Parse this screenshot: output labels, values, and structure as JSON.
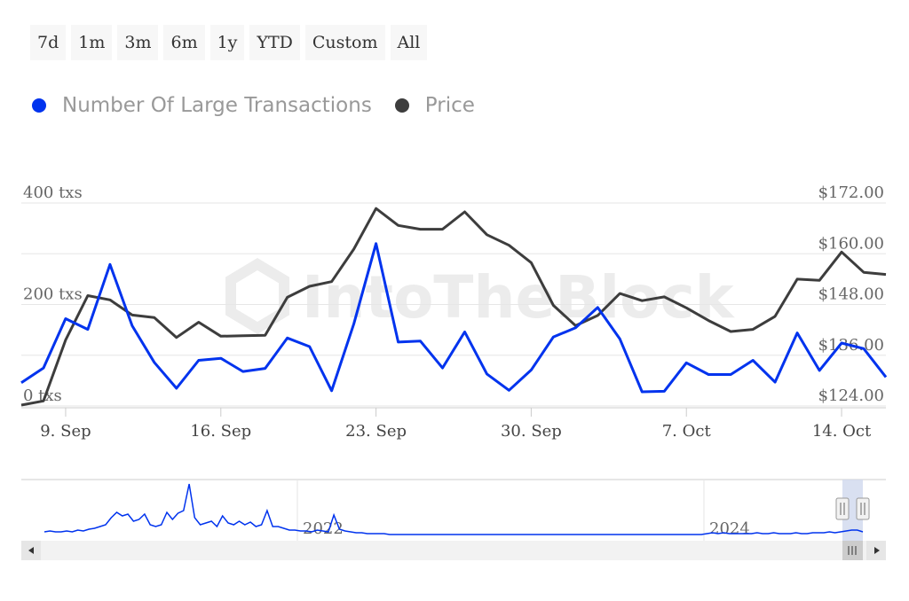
{
  "range_selector": {
    "buttons": [
      "7d",
      "1m",
      "3m",
      "6m",
      "1y",
      "YTD",
      "Custom",
      "All"
    ]
  },
  "watermark": "IntoTheBlock",
  "colors": {
    "transactions": "#0033ee",
    "price": "#3d3d3d",
    "grid": "#e6e6e6",
    "navigator_mask": "#cfd8ee"
  },
  "chart_data": {
    "type": "line",
    "x_ticks": [
      "9. Sep",
      "16. Sep",
      "23. Sep",
      "30. Sep",
      "7. Oct",
      "14. Oct"
    ],
    "y_left": {
      "ticks": [
        "0 txs",
        "200 txs",
        "400 txs"
      ],
      "range": [
        0,
        400
      ]
    },
    "y_right": {
      "ticks": [
        "$124.00",
        "$136.00",
        "$148.00",
        "$160.00",
        "$172.00"
      ],
      "range": [
        124,
        172
      ]
    },
    "series": [
      {
        "name": "Number Of Large Transactions",
        "axis": "left",
        "x": [
          "Sep 7",
          "Sep 8",
          "Sep 9",
          "Sep 10",
          "Sep 11",
          "Sep 12",
          "Sep 13",
          "Sep 14",
          "Sep 15",
          "Sep 16",
          "Sep 17",
          "Sep 18",
          "Sep 19",
          "Sep 20",
          "Sep 21",
          "Sep 22",
          "Sep 23",
          "Sep 24",
          "Sep 25",
          "Sep 26",
          "Sep 27",
          "Sep 28",
          "Sep 29",
          "Sep 30",
          "Oct 1",
          "Oct 2",
          "Oct 3",
          "Oct 4",
          "Oct 5",
          "Oct 6",
          "Oct 7",
          "Oct 8",
          "Oct 9",
          "Oct 10",
          "Oct 11",
          "Oct 12",
          "Oct 13",
          "Oct 14",
          "Oct 15",
          "Oct 16"
        ],
        "values": [
          46,
          75,
          172,
          151,
          279,
          158,
          86,
          35,
          90,
          94,
          68,
          74,
          134,
          117,
          30,
          162,
          320,
          126,
          128,
          75,
          146,
          63,
          31,
          71,
          136,
          154,
          194,
          132,
          28,
          29,
          85,
          62,
          62,
          90,
          47,
          144,
          70,
          124,
          113,
          57
        ]
      },
      {
        "name": "Price",
        "axis": "right",
        "x": [
          "Sep 7",
          "Sep 8",
          "Sep 9",
          "Sep 10",
          "Sep 11",
          "Sep 12",
          "Sep 13",
          "Sep 14",
          "Sep 15",
          "Sep 16",
          "Sep 17",
          "Sep 18",
          "Sep 19",
          "Sep 20",
          "Sep 21",
          "Sep 22",
          "Sep 23",
          "Sep 24",
          "Sep 25",
          "Sep 26",
          "Sep 27",
          "Sep 28",
          "Sep 29",
          "Sep 30",
          "Oct 1",
          "Oct 2",
          "Oct 3",
          "Oct 4",
          "Oct 5",
          "Oct 6",
          "Oct 7",
          "Oct 8",
          "Oct 9",
          "Oct 10",
          "Oct 11",
          "Oct 12",
          "Oct 13",
          "Oct 14",
          "Oct 15",
          "Oct 16"
        ],
        "values": [
          124.2,
          125.2,
          139.6,
          150.1,
          149.1,
          145.5,
          144.9,
          140.2,
          143.8,
          140.5,
          140.6,
          140.7,
          149.7,
          152.3,
          153.4,
          161.1,
          170.7,
          166.7,
          165.8,
          165.8,
          169.9,
          164.5,
          162.0,
          157.9,
          147.8,
          143.0,
          145.4,
          150.6,
          148.9,
          149.8,
          147.2,
          144.2,
          141.6,
          142.1,
          145.2,
          154.0,
          153.7,
          160.4,
          155.6,
          155.1
        ]
      }
    ],
    "navigator": {
      "labels": [
        "2022",
        "2024"
      ],
      "values": [
        6,
        7,
        6,
        6,
        7,
        6,
        8,
        7,
        9,
        10,
        12,
        14,
        22,
        28,
        24,
        26,
        18,
        20,
        26,
        14,
        12,
        14,
        28,
        20,
        27,
        30,
        60,
        22,
        14,
        16,
        18,
        12,
        24,
        16,
        14,
        18,
        14,
        17,
        12,
        14,
        30,
        12,
        12,
        10,
        8,
        8,
        7,
        7,
        6,
        8,
        7,
        6,
        25,
        9,
        7,
        6,
        5,
        5,
        4,
        4,
        4,
        4,
        3,
        3,
        3,
        3,
        3,
        3,
        3,
        3,
        3,
        3,
        3,
        3,
        3,
        3,
        3,
        3,
        3,
        3,
        3,
        3,
        3,
        3,
        3,
        3,
        3,
        3,
        3,
        3,
        3,
        3,
        3,
        3,
        3,
        3,
        3,
        3,
        3,
        3,
        3,
        3,
        3,
        3,
        3,
        3,
        3,
        3,
        3,
        3,
        3,
        3,
        3,
        3,
        3,
        3,
        3,
        3,
        3,
        4,
        5,
        4,
        5,
        4,
        4,
        4,
        4,
        4,
        5,
        4,
        4,
        5,
        4,
        4,
        4,
        5,
        4,
        4,
        5,
        5,
        5,
        6,
        5,
        6,
        7,
        8,
        8,
        6
      ]
    }
  }
}
